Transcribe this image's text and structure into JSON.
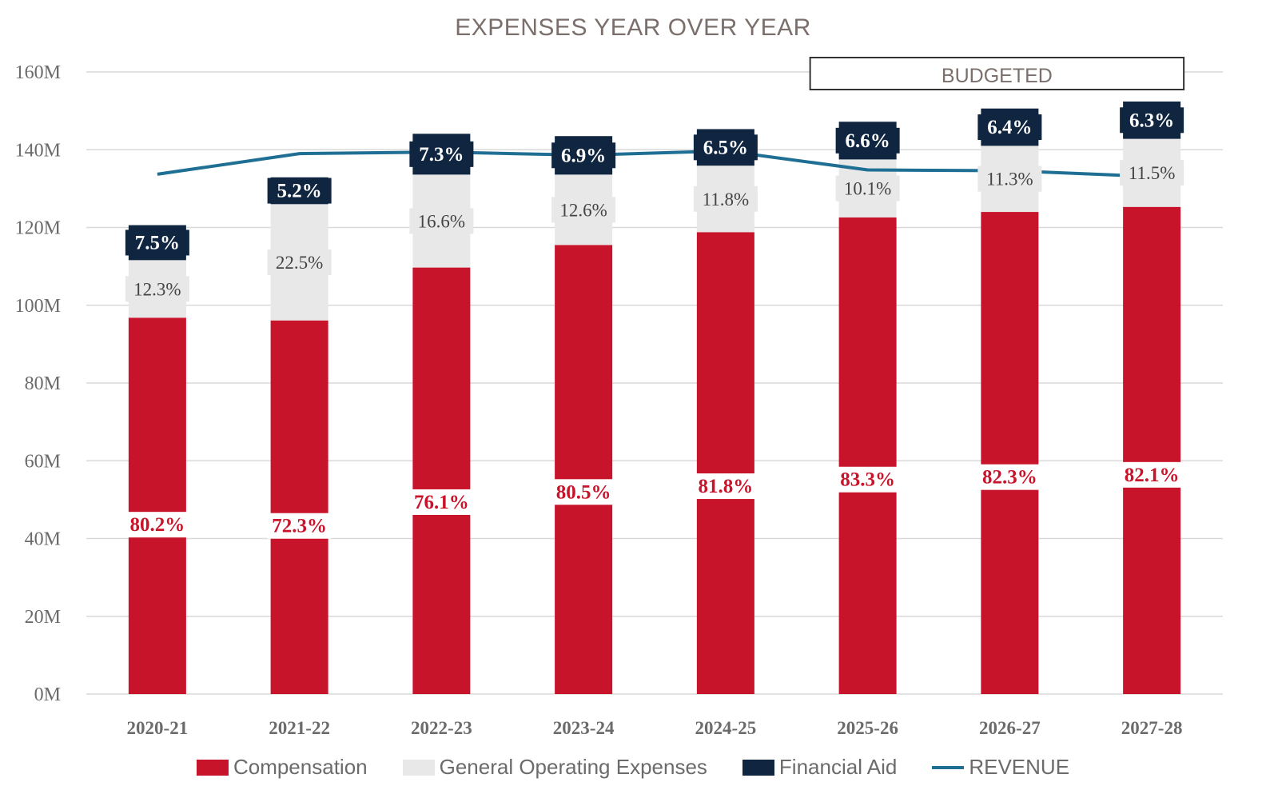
{
  "colors": {
    "compensation": "#c8142a",
    "operating": "#e8e8e8",
    "aid": "#0f2540",
    "revenue": "#1f6e93",
    "grid": "#d9d9d9"
  },
  "chart_data": {
    "type": "bar",
    "stacked": true,
    "title": "EXPENSES YEAR OVER YEAR",
    "xlabel": "",
    "ylabel": "",
    "ylim": [
      0,
      160
    ],
    "yticks": [
      "0M",
      "20M",
      "40M",
      "60M",
      "80M",
      "100M",
      "120M",
      "140M",
      "160M"
    ],
    "categories": [
      "2020-21",
      "2021-22",
      "2022-23",
      "2023-24",
      "2024-25",
      "2025-26",
      "2026-27",
      "2027-28"
    ],
    "series": [
      {
        "name": "Compensation",
        "key": "compensation",
        "values": [
          96.8,
          96.1,
          109.7,
          115.5,
          118.8,
          122.6,
          124.0,
          125.3
        ],
        "labels": [
          "80.2%",
          "72.3%",
          "76.1%",
          "80.5%",
          "81.8%",
          "83.3%",
          "82.3%",
          "82.1%"
        ]
      },
      {
        "name": "General Operating Expenses",
        "key": "operating",
        "values": [
          14.8,
          29.9,
          23.9,
          18.1,
          17.1,
          14.9,
          17.0,
          17.5
        ],
        "labels": [
          "12.3%",
          "22.5%",
          "16.6%",
          "12.6%",
          "11.8%",
          "10.1%",
          "11.3%",
          "11.5%"
        ]
      },
      {
        "name": "Financial Aid",
        "key": "aid",
        "values": [
          9.0,
          6.9,
          10.5,
          9.9,
          9.4,
          9.7,
          9.6,
          9.6
        ],
        "labels": [
          "7.5%",
          "5.2%",
          "7.3%",
          "6.9%",
          "6.5%",
          "6.6%",
          "6.4%",
          "6.3%"
        ]
      }
    ],
    "line_series": {
      "name": "REVENUE",
      "values": [
        133.7,
        139.0,
        139.4,
        138.6,
        139.7,
        134.8,
        134.6,
        133.1
      ]
    },
    "annotation": {
      "text": "BUDGETED",
      "from_category": "2025-26",
      "to_category": "2027-28"
    },
    "legend_position": "bottom"
  },
  "legend": {
    "compensation": "Compensation",
    "operating": "General Operating Expenses",
    "aid": "Financial Aid",
    "revenue": "REVENUE"
  }
}
